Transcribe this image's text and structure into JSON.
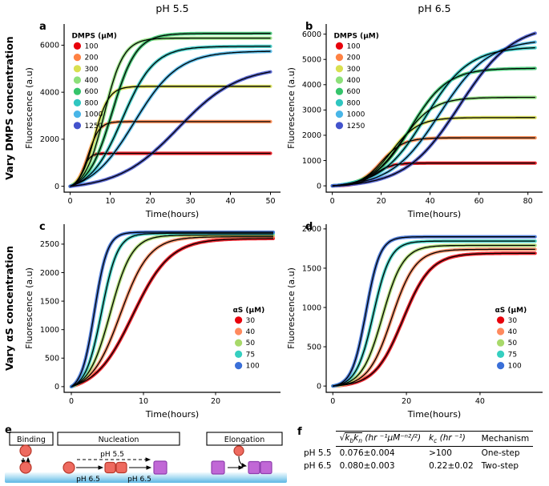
{
  "figure": {
    "column_headers": [
      "pH 5.5",
      "pH 6.5"
    ],
    "row_labels": [
      "Vary DMPS concentration",
      "Vary αS concentration"
    ]
  },
  "chart_data": [
    {
      "id": "a",
      "panel_label": "a",
      "type": "line",
      "title": "pH 5.5, vary DMPS concentration",
      "xlabel": "Time(hours)",
      "ylabel": "Fluorescence (a.u)",
      "xlim": [
        -1.5,
        52.5
      ],
      "ylim": [
        -250,
        6900
      ],
      "xdata": [
        0,
        50
      ],
      "xticks": [
        0,
        10,
        20,
        30,
        40,
        50
      ],
      "yticks": [
        0,
        2000,
        4000,
        6000
      ],
      "legend": {
        "title": "DMPS (μM)",
        "x": 0.035,
        "y": 0.04
      },
      "model": "logistic sigmoid F(t)=plateau*(S(t)-S(0))/(1-S(0)), S(t)=1/(1+exp(-(t-t50)/tau)); black curves are kinetic fits",
      "series": [
        {
          "name": "100",
          "color": "#e8000b",
          "plateau": 1400,
          "t50": 3.2,
          "tau": 0.9
        },
        {
          "name": "200",
          "color": "#ff8243",
          "plateau": 2750,
          "t50": 4.5,
          "tau": 1.4
        },
        {
          "name": "300",
          "color": "#d9e04f",
          "plateau": 4250,
          "t50": 6.0,
          "tau": 1.8
        },
        {
          "name": "400",
          "color": "#8de07a",
          "plateau": 6300,
          "t50": 8.5,
          "tau": 2.4
        },
        {
          "name": "600",
          "color": "#35c46b",
          "plateau": 6500,
          "t50": 10.5,
          "tau": 3.0
        },
        {
          "name": "800",
          "color": "#2fc6c0",
          "plateau": 5950,
          "t50": 13.0,
          "tau": 4.0
        },
        {
          "name": "1000",
          "color": "#49b6e8",
          "plateau": 5750,
          "t50": 16.0,
          "tau": 5.5
        },
        {
          "name": "1250",
          "color": "#4353cc",
          "plateau": 5100,
          "t50": 27.0,
          "tau": 7.5
        }
      ]
    },
    {
      "id": "b",
      "panel_label": "b",
      "type": "line",
      "title": "pH 6.5, vary DMPS concentration",
      "xlabel": "Time(hours)",
      "ylabel": "Fluorescence (a.u)",
      "xlim": [
        -2.5,
        86
      ],
      "ylim": [
        -250,
        6400
      ],
      "xdata": [
        0,
        83
      ],
      "xticks": [
        0,
        20,
        40,
        60,
        80
      ],
      "yticks": [
        0,
        1000,
        2000,
        3000,
        4000,
        5000,
        6000
      ],
      "legend": {
        "title": "DMPS (μM)",
        "x": 0.035,
        "y": 0.04
      },
      "model": "logistic sigmoid; black curves are kinetic fits",
      "series": [
        {
          "name": "100",
          "color": "#e8000b",
          "plateau": 900,
          "t50": 17,
          "tau": 3.5
        },
        {
          "name": "200",
          "color": "#ff8243",
          "plateau": 1900,
          "t50": 20,
          "tau": 4.5
        },
        {
          "name": "300",
          "color": "#d9e04f",
          "plateau": 2700,
          "t50": 24,
          "tau": 5.5
        },
        {
          "name": "400",
          "color": "#8de07a",
          "plateau": 3500,
          "t50": 28,
          "tau": 6.5
        },
        {
          "name": "600",
          "color": "#35c46b",
          "plateau": 4650,
          "t50": 32,
          "tau": 7.5
        },
        {
          "name": "800",
          "color": "#2fc6c0",
          "plateau": 5500,
          "t50": 38,
          "tau": 9.0
        },
        {
          "name": "1000",
          "color": "#49b6e8",
          "plateau": 5800,
          "t50": 44,
          "tau": 10.0
        },
        {
          "name": "1250",
          "color": "#4353cc",
          "plateau": 6400,
          "t50": 52,
          "tau": 11.0
        }
      ]
    },
    {
      "id": "c",
      "panel_label": "c",
      "type": "line",
      "title": "pH 5.5, vary αS concentration",
      "xlabel": "Time(hours)",
      "ylabel": "Fluorescence (a.u)",
      "xlim": [
        -1,
        29
      ],
      "ylim": [
        -100,
        2850
      ],
      "xdata": [
        0,
        28
      ],
      "xticks": [
        0,
        10,
        20
      ],
      "yticks": [
        0,
        500,
        1000,
        1500,
        2000,
        2500
      ],
      "legend": {
        "title": "αS (μM)",
        "x": 0.78,
        "y": 0.48
      },
      "model": "logistic sigmoid; black curves are kinetic fits",
      "series": [
        {
          "name": "30",
          "color": "#e8000b",
          "plateau": 2600,
          "t50": 8.5,
          "tau": 2.6
        },
        {
          "name": "40",
          "color": "#ff8a5e",
          "plateau": 2630,
          "t50": 6.8,
          "tau": 2.0
        },
        {
          "name": "50",
          "color": "#a8d96a",
          "plateau": 2660,
          "t50": 5.4,
          "tau": 1.5
        },
        {
          "name": "75",
          "color": "#35cfc0",
          "plateau": 2690,
          "t50": 4.2,
          "tau": 1.1
        },
        {
          "name": "100",
          "color": "#3a6fd8",
          "plateau": 2710,
          "t50": 3.2,
          "tau": 0.9
        }
      ]
    },
    {
      "id": "d",
      "panel_label": "d",
      "type": "line",
      "title": "pH 6.5, vary αS concentration",
      "xlabel": "Time(hours)",
      "ylabel": "Fluorescence (a.u)",
      "xlim": [
        -1.8,
        57
      ],
      "ylim": [
        -80,
        2060
      ],
      "xdata": [
        0,
        55
      ],
      "xticks": [
        0,
        20,
        40
      ],
      "yticks": [
        0,
        500,
        1000,
        1500,
        2000
      ],
      "legend": {
        "title": "αS (μM)",
        "x": 0.78,
        "y": 0.48
      },
      "model": "logistic sigmoid; black curves are kinetic fits",
      "series": [
        {
          "name": "30",
          "color": "#e8000b",
          "plateau": 1690,
          "t50": 19.0,
          "tau": 3.8
        },
        {
          "name": "40",
          "color": "#ff8a5e",
          "plateau": 1740,
          "t50": 16.0,
          "tau": 3.2
        },
        {
          "name": "50",
          "color": "#a8d96a",
          "plateau": 1790,
          "t50": 13.5,
          "tau": 2.8
        },
        {
          "name": "75",
          "color": "#35cfc0",
          "plateau": 1845,
          "t50": 11.0,
          "tau": 2.3
        },
        {
          "name": "100",
          "color": "#3a6fd8",
          "plateau": 1900,
          "t50": 9.0,
          "tau": 1.9
        }
      ]
    }
  ],
  "diagram": {
    "panel_label": "e",
    "stages": [
      "Binding",
      "Nucleation",
      "Elongation"
    ],
    "ph55_label": "pH 5.5",
    "ph65_label_1": "pH 6.5",
    "ph65_label_2": "pH 6.5",
    "monomer_color": "#ee6a5f",
    "fibril_color": "#c168d6",
    "membrane_color": "#8ecfee"
  },
  "table": {
    "panel_label": "f",
    "header": {
      "sqrt": "√",
      "k1": "k",
      "k1_sub": "b",
      "k2": "k",
      "k2_sub": "n",
      "rate_units": " (hr ⁻¹μM⁻ⁿ²/²)",
      "kc": "k",
      "kc_sub": "c",
      "kc_units": " (hr ⁻¹)",
      "mechanism": "Mechanism"
    },
    "rows": [
      {
        "ph": "pH 5.5",
        "rate": "0.076±0.004",
        "kc": ">100",
        "mechanism": "One-step"
      },
      {
        "ph": "pH 6.5",
        "rate": "0.080±0.003",
        "kc": "0.22±0.02",
        "mechanism": "Two-step"
      }
    ]
  }
}
